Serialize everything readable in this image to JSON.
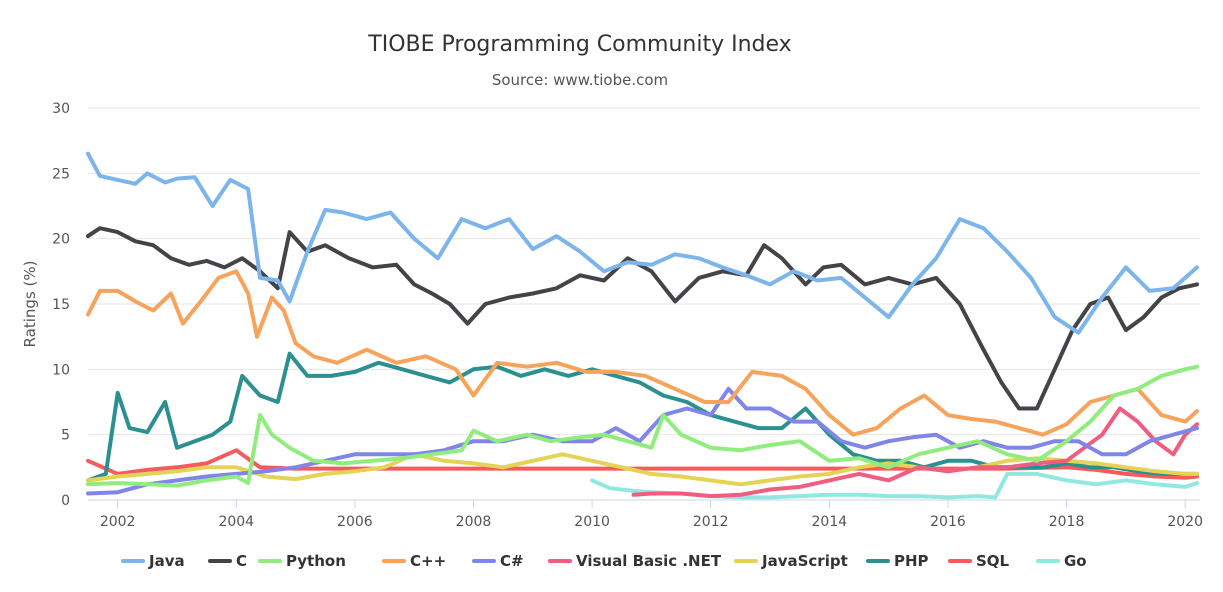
{
  "chart_data": {
    "type": "line",
    "title": "TIOBE Programming Community Index",
    "subtitle": "Source: www.tiobe.com",
    "ylabel": "Ratings (%)",
    "xlabel": "",
    "xlim": [
      2001.5,
      2020.25
    ],
    "ylim": [
      0,
      30
    ],
    "x_ticks": [
      "2002",
      "2004",
      "2006",
      "2008",
      "2010",
      "2012",
      "2014",
      "2016",
      "2018",
      "2020"
    ],
    "y_ticks": [
      "0",
      "5",
      "10",
      "15",
      "20",
      "25",
      "30"
    ],
    "grid": "horizontal",
    "legend": "bottom",
    "series": [
      {
        "name": "Java",
        "color": "#7cb5ec",
        "x": [
          2001.5,
          2001.7,
          2002,
          2002.3,
          2002.5,
          2002.8,
          2003,
          2003.3,
          2003.6,
          2003.9,
          2004.2,
          2004.4,
          2004.7,
          2004.9,
          2005.2,
          2005.5,
          2005.8,
          2006.2,
          2006.6,
          2007,
          2007.4,
          2007.8,
          2008.2,
          2008.6,
          2009,
          2009.4,
          2009.8,
          2010.2,
          2010.6,
          2011,
          2011.4,
          2011.8,
          2012.2,
          2012.6,
          2013,
          2013.4,
          2013.8,
          2014.2,
          2014.6,
          2015,
          2015.4,
          2015.8,
          2016.2,
          2016.6,
          2017,
          2017.4,
          2017.8,
          2018.2,
          2018.6,
          2019,
          2019.4,
          2019.8,
          2020.2
        ],
        "y": [
          26.5,
          24.8,
          24.5,
          24.2,
          25,
          24.3,
          24.6,
          24.7,
          22.5,
          24.5,
          23.8,
          17,
          16.8,
          15.2,
          19,
          22.2,
          22,
          21.5,
          22,
          20,
          18.5,
          21.5,
          20.8,
          21.5,
          19.2,
          20.2,
          19,
          17.5,
          18.2,
          18,
          18.8,
          18.5,
          17.8,
          17.2,
          16.5,
          17.5,
          16.8,
          17,
          15.5,
          14,
          16.5,
          18.5,
          21.5,
          20.8,
          19,
          17,
          14,
          12.8,
          15.5,
          17.8,
          16,
          16.2,
          17.8
        ]
      },
      {
        "name": "C",
        "color": "#434348",
        "x": [
          2001.5,
          2001.7,
          2002,
          2002.3,
          2002.6,
          2002.9,
          2003.2,
          2003.5,
          2003.8,
          2004.1,
          2004.4,
          2004.7,
          2004.9,
          2005.2,
          2005.5,
          2005.9,
          2006.3,
          2006.7,
          2007,
          2007.3,
          2007.6,
          2007.9,
          2008.2,
          2008.6,
          2009,
          2009.4,
          2009.8,
          2010.2,
          2010.6,
          2011,
          2011.4,
          2011.8,
          2012.2,
          2012.6,
          2012.9,
          2013.2,
          2013.6,
          2013.9,
          2014.2,
          2014.6,
          2015,
          2015.4,
          2015.8,
          2016.2,
          2016.6,
          2016.9,
          2017.2,
          2017.5,
          2017.8,
          2018.1,
          2018.4,
          2018.7,
          2019,
          2019.3,
          2019.6,
          2019.9,
          2020.2
        ],
        "y": [
          20.2,
          20.8,
          20.5,
          19.8,
          19.5,
          18.5,
          18,
          18.3,
          17.8,
          18.5,
          17.5,
          16.2,
          20.5,
          19,
          19.5,
          18.5,
          17.8,
          18,
          16.5,
          15.8,
          15,
          13.5,
          15,
          15.5,
          15.8,
          16.2,
          17.2,
          16.8,
          18.5,
          17.5,
          15.2,
          17,
          17.5,
          17.2,
          19.5,
          18.5,
          16.5,
          17.8,
          18,
          16.5,
          17,
          16.5,
          17,
          15,
          11.5,
          9,
          7,
          7,
          10,
          13,
          15,
          15.5,
          13,
          14,
          15.5,
          16.2,
          16.5
        ]
      },
      {
        "name": "Python",
        "color": "#90ed7d",
        "x": [
          2001.5,
          2002,
          2002.5,
          2003,
          2003.5,
          2004,
          2004.2,
          2004.4,
          2004.6,
          2004.9,
          2005.3,
          2005.8,
          2006.3,
          2006.8,
          2007.3,
          2007.8,
          2008,
          2008.4,
          2008.9,
          2009.3,
          2009.8,
          2010.2,
          2010.6,
          2011,
          2011.2,
          2011.5,
          2012,
          2012.5,
          2013,
          2013.5,
          2014,
          2014.5,
          2015,
          2015.5,
          2016,
          2016.5,
          2017,
          2017.5,
          2018,
          2018.4,
          2018.8,
          2019.2,
          2019.6,
          2020,
          2020.2
        ],
        "y": [
          1.2,
          1.3,
          1.2,
          1.1,
          1.5,
          1.8,
          1.3,
          6.5,
          5,
          4,
          3,
          2.8,
          3,
          3.2,
          3.5,
          3.8,
          5.3,
          4.5,
          5,
          4.5,
          4.8,
          5,
          4.5,
          4,
          6.5,
          5,
          4,
          3.8,
          4.2,
          4.5,
          3,
          3.2,
          2.5,
          3.5,
          4,
          4.5,
          3.5,
          3,
          4.5,
          6,
          8,
          8.5,
          9.5,
          10,
          10.2
        ]
      },
      {
        "name": "C++",
        "color": "#f7a35c",
        "x": [
          2001.5,
          2001.7,
          2002,
          2002.3,
          2002.6,
          2002.9,
          2003.1,
          2003.4,
          2003.7,
          2004,
          2004.2,
          2004.35,
          2004.6,
          2004.8,
          2005,
          2005.3,
          2005.7,
          2006.2,
          2006.7,
          2007.2,
          2007.7,
          2008,
          2008.4,
          2008.9,
          2009.4,
          2009.9,
          2010.4,
          2010.9,
          2011.4,
          2011.9,
          2012.3,
          2012.7,
          2013.2,
          2013.6,
          2014,
          2014.4,
          2014.8,
          2015.2,
          2015.6,
          2016,
          2016.4,
          2016.8,
          2017.2,
          2017.6,
          2018,
          2018.4,
          2018.8,
          2019.2,
          2019.6,
          2020,
          2020.2
        ],
        "y": [
          14.2,
          16,
          16,
          15.2,
          14.5,
          15.8,
          13.5,
          15.2,
          17,
          17.5,
          15.8,
          12.5,
          15.5,
          14.5,
          12,
          11,
          10.5,
          11.5,
          10.5,
          11,
          10,
          8,
          10.5,
          10.2,
          10.5,
          9.8,
          9.8,
          9.5,
          8.5,
          7.5,
          7.5,
          9.8,
          9.5,
          8.5,
          6.5,
          5,
          5.5,
          7,
          8,
          6.5,
          6.2,
          6,
          5.5,
          5,
          5.8,
          7.5,
          8,
          8.5,
          6.5,
          6,
          6.8
        ]
      },
      {
        "name": "C#",
        "color": "#8085e9",
        "x": [
          2001.5,
          2002,
          2002.5,
          2003,
          2003.5,
          2004,
          2004.5,
          2005,
          2005.5,
          2006,
          2006.5,
          2007,
          2007.5,
          2008,
          2008.5,
          2009,
          2009.5,
          2010,
          2010.4,
          2010.8,
          2011.2,
          2011.6,
          2012,
          2012.3,
          2012.6,
          2013,
          2013.4,
          2013.8,
          2014.2,
          2014.6,
          2015,
          2015.4,
          2015.8,
          2016.2,
          2016.6,
          2017,
          2017.4,
          2017.8,
          2018.2,
          2018.6,
          2019,
          2019.4,
          2019.8,
          2020.2
        ],
        "y": [
          0.5,
          0.6,
          1.2,
          1.5,
          1.8,
          2,
          2.2,
          2.5,
          3,
          3.5,
          3.5,
          3.5,
          3.8,
          4.5,
          4.5,
          5,
          4.5,
          4.5,
          5.5,
          4.5,
          6.5,
          7,
          6.5,
          8.5,
          7,
          7,
          6,
          6,
          4.5,
          4,
          4.5,
          4.8,
          5,
          4,
          4.5,
          4,
          4,
          4.5,
          4.5,
          3.5,
          3.5,
          4.5,
          5,
          5.5
        ]
      },
      {
        "name": "Visual Basic .NET",
        "color": "#f15c80",
        "x": [
          2010.7,
          2011,
          2011.5,
          2012,
          2012.5,
          2013,
          2013.5,
          2014,
          2014.5,
          2015,
          2015.5,
          2016,
          2016.5,
          2017,
          2017.5,
          2018,
          2018.3,
          2018.6,
          2018.9,
          2019.2,
          2019.5,
          2019.8,
          2020,
          2020.2
        ],
        "y": [
          0.4,
          0.5,
          0.5,
          0.3,
          0.4,
          0.8,
          1,
          1.5,
          2,
          1.5,
          2.5,
          2.2,
          2.5,
          2.5,
          2.8,
          3,
          4,
          5,
          7,
          6,
          4.5,
          3.5,
          5,
          5.8
        ]
      },
      {
        "name": "JavaScript",
        "color": "#e4d354",
        "x": [
          2001.5,
          2002,
          2002.5,
          2003,
          2003.5,
          2004,
          2004.5,
          2005,
          2005.5,
          2006,
          2006.5,
          2007,
          2007.5,
          2008,
          2008.5,
          2009,
          2009.5,
          2010,
          2010.5,
          2011,
          2011.5,
          2012,
          2012.5,
          2013,
          2013.5,
          2014,
          2014.5,
          2015,
          2015.5,
          2016,
          2016.5,
          2017,
          2017.5,
          2018,
          2018.5,
          2019,
          2019.5,
          2020,
          2020.2
        ],
        "y": [
          1.5,
          1.8,
          2,
          2.2,
          2.5,
          2.5,
          1.8,
          1.6,
          2,
          2.2,
          2.5,
          3.5,
          3,
          2.8,
          2.5,
          3,
          3.5,
          3,
          2.5,
          2,
          1.8,
          1.5,
          1.2,
          1.5,
          1.8,
          2,
          2.5,
          2.8,
          2.5,
          2.2,
          2.5,
          3,
          3.2,
          3,
          2.8,
          2.5,
          2.2,
          2,
          2
        ]
      },
      {
        "name": "PHP",
        "color": "#2b908f",
        "x": [
          2001.5,
          2001.8,
          2002,
          2002.2,
          2002.5,
          2002.8,
          2003,
          2003.3,
          2003.6,
          2003.9,
          2004.1,
          2004.4,
          2004.7,
          2004.9,
          2005.2,
          2005.6,
          2006,
          2006.4,
          2006.8,
          2007.2,
          2007.6,
          2008,
          2008.4,
          2008.8,
          2009.2,
          2009.6,
          2010,
          2010.4,
          2010.8,
          2011.2,
          2011.6,
          2012,
          2012.4,
          2012.8,
          2013.2,
          2013.6,
          2014,
          2014.4,
          2014.8,
          2015.2,
          2015.6,
          2016,
          2016.4,
          2016.8,
          2017.2,
          2017.6,
          2018,
          2018.4,
          2018.8,
          2019.2,
          2019.6,
          2020,
          2020.2
        ],
        "y": [
          1.5,
          2,
          8.2,
          5.5,
          5.2,
          7.5,
          4,
          4.5,
          5,
          6,
          9.5,
          8,
          7.5,
          11.2,
          9.5,
          9.5,
          9.8,
          10.5,
          10,
          9.5,
          9,
          10,
          10.2,
          9.5,
          10,
          9.5,
          10,
          9.5,
          9,
          8,
          7.5,
          6.5,
          6,
          5.5,
          5.5,
          7,
          5,
          3.5,
          3,
          3,
          2.5,
          3,
          3,
          2.5,
          2.5,
          2.5,
          2.8,
          2.5,
          2.5,
          2.2,
          2,
          2,
          2
        ]
      },
      {
        "name": "SQL",
        "color": "#f45b5b",
        "x": [
          2001.5,
          2002,
          2002.5,
          2003,
          2003.5,
          2004,
          2004.4,
          2005,
          2010,
          2015,
          2017,
          2018,
          2018.5,
          2019,
          2019.5,
          2020,
          2020.2
        ],
        "y": [
          3,
          2,
          2.3,
          2.5,
          2.8,
          3.8,
          2.5,
          2.4,
          2.4,
          2.4,
          2.4,
          2.5,
          2.3,
          2,
          1.8,
          1.7,
          1.8
        ]
      },
      {
        "name": "Go",
        "color": "#91e8e1",
        "x": [
          2010,
          2010.3,
          2010.7,
          2011,
          2011.5,
          2012,
          2012.5,
          2013,
          2013.5,
          2014,
          2014.5,
          2015,
          2015.5,
          2016,
          2016.5,
          2016.8,
          2017,
          2017.5,
          2018,
          2018.5,
          2019,
          2019.5,
          2020,
          2020.2
        ],
        "y": [
          1.5,
          0.9,
          0.7,
          0.6,
          0.5,
          0.3,
          0.2,
          0.2,
          0.3,
          0.4,
          0.4,
          0.3,
          0.3,
          0.2,
          0.3,
          0.2,
          2,
          2,
          1.5,
          1.2,
          1.5,
          1.2,
          1,
          1.3
        ]
      }
    ]
  }
}
